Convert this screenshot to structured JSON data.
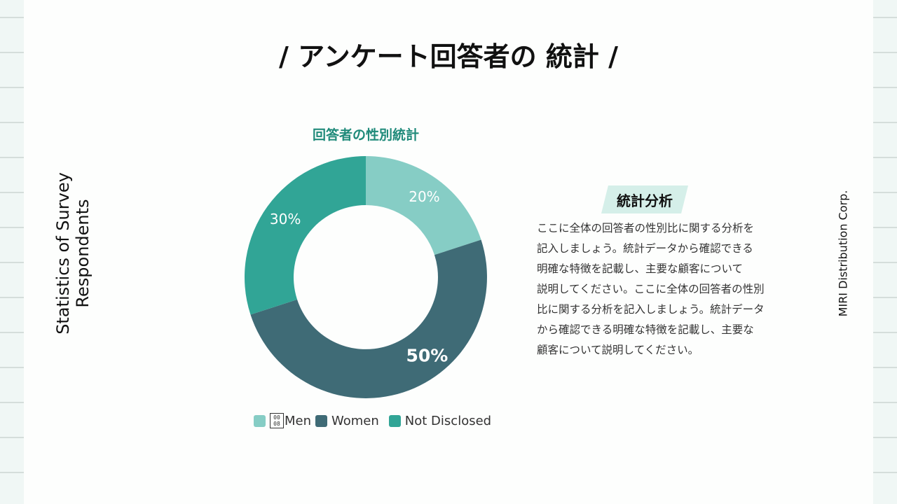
{
  "page": {
    "title": "/ アンケート回答者の 統計 /",
    "side_title_lines": [
      "Statistics of Survey",
      "Respondents"
    ],
    "company": "MIRI Distribution Corp."
  },
  "analysis": {
    "heading": "統計分析",
    "lines": [
      "ここに全体の回答者の性別比に関する分析を",
      "記入しましょう。統計データから確認できる",
      "明確な特徴を記載し、主要な顧客について",
      "説明してください。ここに全体の回答者の性別",
      "比に関する分析を記入しましょう。統計データ",
      "から確認できる明確な特徴を記載し、主要な",
      "顧客について説明してください。"
    ]
  },
  "legend": {
    "items": [
      {
        "label": "Men",
        "color": "#86cdc5",
        "glyph": "0008"
      },
      {
        "label": "Women",
        "color": "#3f6b76"
      },
      {
        "label": "Not Disclosed",
        "color": "#31a596"
      }
    ]
  },
  "chart_data": {
    "type": "pie",
    "subtype": "donut",
    "title": "回答者の性別統計",
    "categories": [
      "Men",
      "Women",
      "Not Disclosed"
    ],
    "values": [
      20,
      50,
      30
    ],
    "unit": "%",
    "data_labels": [
      "20%",
      "50%",
      "30%"
    ],
    "colors": [
      "#86cdc5",
      "#3f6b76",
      "#31a596"
    ],
    "start_angle_deg": 0,
    "direction": "clockwise",
    "legend_position": "bottom"
  }
}
